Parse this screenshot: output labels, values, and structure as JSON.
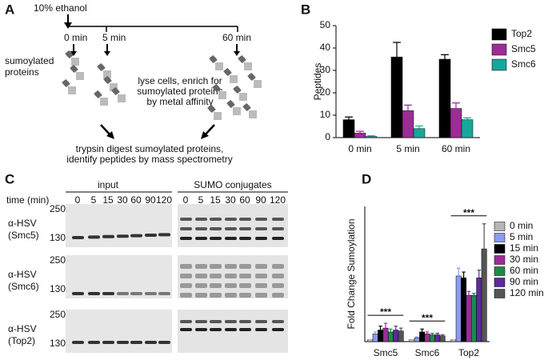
{
  "panel_labels": [
    "A",
    "B",
    "C",
    "D"
  ],
  "diagram": {
    "treatment": "10% ethanol",
    "timepoints": [
      "0 min",
      "5 min",
      "60 min"
    ],
    "protein_label": [
      "sumoylated",
      "proteins"
    ],
    "enrich_step": [
      "lyse cells, enrich for",
      "sumoylated proteins",
      "by metal affinity"
    ],
    "digest_step": [
      "trypsin digest sumoylated proteins,",
      "identify peptides by mass spectrometry"
    ]
  },
  "blots": {
    "headers": [
      "input",
      "SUMO conjugates"
    ],
    "time_label": "time (min)",
    "lanes": [
      "0",
      "5",
      "15",
      "30",
      "60",
      "90",
      "120"
    ],
    "rows": [
      {
        "antibody": "α-HSV",
        "target": "(Smc5)",
        "markers": [
          "250",
          "130"
        ]
      },
      {
        "antibody": "α-HSV",
        "target": "(Smc6)",
        "markers": [
          "250",
          "130"
        ]
      },
      {
        "antibody": "α-HSV",
        "target": "(Top2)",
        "markers": [
          "250",
          "130"
        ]
      }
    ]
  },
  "chart_data": [
    {
      "type": "bar",
      "y_label": "Peptides",
      "categories": [
        "0 min",
        "5 min",
        "60 min"
      ],
      "series": [
        {
          "name": "Top2",
          "color": "#000000",
          "values": [
            8,
            36,
            35
          ],
          "errors": [
            1.2,
            6.5,
            2
          ]
        },
        {
          "name": "Smc5",
          "color": "#9c2d97",
          "values": [
            2,
            12,
            13
          ],
          "errors": [
            0.8,
            2.5,
            2.5
          ]
        },
        {
          "name": "Smc6",
          "color": "#1aa59a",
          "values": [
            0.5,
            4,
            8
          ],
          "errors": [
            0.3,
            1.2,
            0.8
          ]
        }
      ],
      "ylim": [
        0,
        50
      ],
      "yticks": [
        0,
        10,
        20,
        30,
        40,
        50
      ],
      "legend": "outside-right"
    },
    {
      "type": "bar",
      "y_label": "Fold Change Sumoylation",
      "categories": [
        "Smc5",
        "Smc6",
        "Top2"
      ],
      "series": [
        {
          "name": "0 min",
          "color": "#b5b5b5",
          "values": [
            1,
            1,
            1
          ],
          "errors": [
            0.1,
            0.1,
            0.1
          ]
        },
        {
          "name": "5 min",
          "color": "#8a9bf0",
          "values": [
            4,
            2,
            34
          ],
          "errors": [
            1,
            0.5,
            4
          ]
        },
        {
          "name": "15 min",
          "color": "#000000",
          "values": [
            6,
            5,
            33
          ],
          "errors": [
            2,
            1.5,
            3
          ]
        },
        {
          "name": "30 min",
          "color": "#9c2d97",
          "values": [
            7,
            4,
            24
          ],
          "errors": [
            2.5,
            1,
            2
          ]
        },
        {
          "name": "60 min",
          "color": "#1d8a4c",
          "values": [
            5,
            3.5,
            24
          ],
          "errors": [
            1.5,
            0.8,
            1
          ]
        },
        {
          "name": "90 min",
          "color": "#5b2a9c",
          "values": [
            6,
            3.5,
            33
          ],
          "errors": [
            2,
            0.8,
            4
          ]
        },
        {
          "name": "120 min",
          "color": "#555555",
          "values": [
            5.5,
            3,
            48
          ],
          "errors": [
            1.5,
            0.6,
            13
          ]
        }
      ],
      "ylim": [
        0,
        70
      ],
      "annotations": [
        "***",
        "***",
        "***"
      ],
      "legend": "outside-right"
    }
  ]
}
